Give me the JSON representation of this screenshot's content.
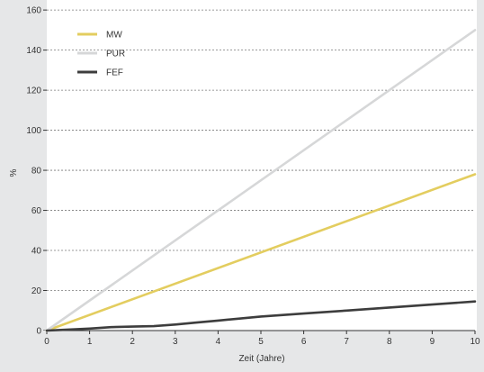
{
  "chart_data": {
    "type": "line",
    "title": "",
    "xlabel": "Zeit (Jahre)",
    "ylabel": "%",
    "xlim": [
      0,
      10
    ],
    "ylim": [
      0,
      165
    ],
    "x_ticks": [
      0,
      1,
      2,
      3,
      4,
      5,
      6,
      7,
      8,
      9,
      10
    ],
    "y_ticks": [
      0,
      20,
      40,
      60,
      80,
      100,
      120,
      140,
      160
    ],
    "grid": "horizontal dashed",
    "legend_position": "top-left",
    "series": [
      {
        "name": "MW",
        "color": "#e3cd5f",
        "x": [
          0,
          10
        ],
        "y": [
          0,
          78
        ]
      },
      {
        "name": "PUR",
        "color": "#d6d7d8",
        "x": [
          0,
          10
        ],
        "y": [
          0,
          150
        ]
      },
      {
        "name": "FEF",
        "color": "#3d3d3d",
        "x": [
          0,
          0.5,
          1,
          1.5,
          2,
          2.5,
          3,
          3.5,
          4,
          4.5,
          5,
          6,
          7,
          8,
          9,
          10
        ],
        "y": [
          0,
          0.5,
          1,
          1.7,
          2,
          2.2,
          3,
          4,
          5,
          6,
          7,
          8.5,
          10,
          11.5,
          13,
          14.5
        ]
      }
    ]
  }
}
